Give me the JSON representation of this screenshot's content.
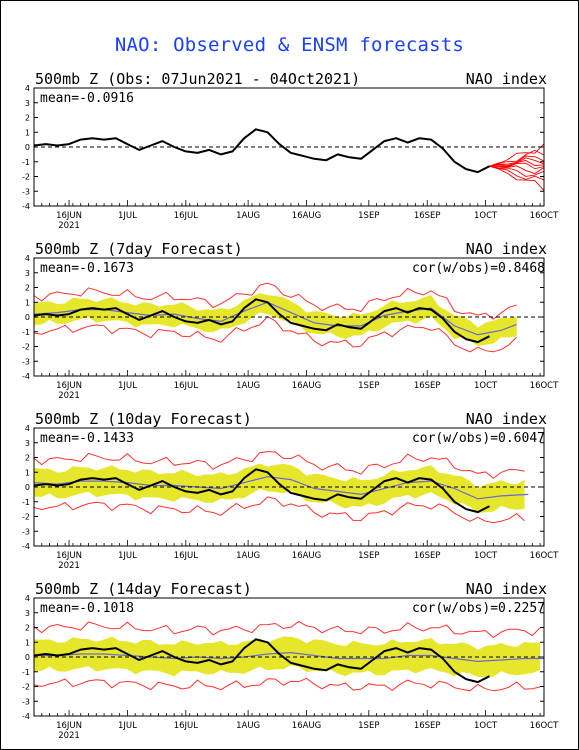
{
  "title": "NAO: Observed & ENSM forecasts",
  "colors": {
    "title": "#1a40ff",
    "observed": "#000000",
    "ensemble_members": "#ff0000",
    "ensemble_band": "#e6e62a",
    "ensemble_mean": "#6a6ad0",
    "spread_bounds": "#ff3030",
    "zero_line": "#000000"
  },
  "x_tick_labels": [
    "16JUN",
    "1JUL",
    "16JUL",
    "1AUG",
    "16AUG",
    "1SEP",
    "16SEP",
    "1OCT",
    "16OCT"
  ],
  "x_year_label": "2021",
  "y_tick_labels": [
    "4",
    "3",
    "2",
    "1",
    "0",
    "-1",
    "-2",
    "-3",
    "-4"
  ],
  "panels": [
    {
      "title_left": "500mb Z (Obs: 07Jun2021 - 04Oct2021)",
      "title_right": "NAO index",
      "stat_left": "mean=-0.0916",
      "stat_right": ""
    },
    {
      "title_left": "500mb Z (7day Forecast)",
      "title_right": "NAO index",
      "stat_left": "mean=-0.1673",
      "stat_right": "cor(w/obs)=0.8468"
    },
    {
      "title_left": "500mb Z (10day Forecast)",
      "title_right": "NAO index",
      "stat_left": "mean=-0.1433",
      "stat_right": "cor(w/obs)=0.6047"
    },
    {
      "title_left": "500mb Z (14day Forecast)",
      "title_right": "NAO index",
      "stat_left": "mean=-0.1018",
      "stat_right": "cor(w/obs)=0.2257"
    }
  ],
  "chart_data": [
    {
      "type": "line",
      "title": "500mb Z (Obs: 07Jun2021 - 04Oct2021)",
      "ylabel": "NAO index",
      "ylim": [
        -4,
        4
      ],
      "x_range_days": [
        0,
        131
      ],
      "x_ticks_days": [
        9,
        24,
        39,
        55,
        70,
        86,
        101,
        116,
        131
      ],
      "series": [
        {
          "name": "observed",
          "x": [
            0,
            3,
            6,
            9,
            12,
            15,
            18,
            21,
            24,
            27,
            30,
            33,
            36,
            39,
            42,
            45,
            48,
            51,
            54,
            57,
            60,
            63,
            66,
            69,
            72,
            75,
            78,
            81,
            84,
            87,
            90,
            93,
            96,
            99,
            102,
            105,
            108,
            111,
            114,
            117
          ],
          "y": [
            0.1,
            0.2,
            0.1,
            0.2,
            0.5,
            0.6,
            0.5,
            0.6,
            0.2,
            -0.2,
            0.1,
            0.4,
            0.0,
            -0.3,
            -0.4,
            -0.2,
            -0.5,
            -0.3,
            0.6,
            1.2,
            1.0,
            0.2,
            -0.4,
            -0.6,
            -0.8,
            -0.9,
            -0.5,
            -0.7,
            -0.8,
            -0.2,
            0.4,
            0.6,
            0.3,
            0.6,
            0.5,
            -0.1,
            -1.0,
            -1.5,
            -1.7,
            -1.3
          ]
        }
      ],
      "forecast_members_start_day": 117,
      "forecast_members_end_day": 131,
      "forecast_members_end_values": [
        -0.3,
        -0.8,
        -1.2,
        -1.6,
        -2.0,
        -2.4,
        -2.8,
        -0.6,
        -1.0,
        0.1
      ]
    },
    {
      "type": "line",
      "title": "500mb Z (7day Forecast)",
      "ylabel": "NAO index",
      "ylim": [
        -4,
        4
      ],
      "x_ticks_days": [
        9,
        24,
        39,
        55,
        70,
        86,
        101,
        116,
        131
      ],
      "series": [
        {
          "name": "observed",
          "x": [
            0,
            3,
            6,
            9,
            12,
            15,
            18,
            21,
            24,
            27,
            30,
            33,
            36,
            39,
            42,
            45,
            48,
            51,
            54,
            57,
            60,
            63,
            66,
            69,
            72,
            75,
            78,
            81,
            84,
            87,
            90,
            93,
            96,
            99,
            102,
            105,
            108,
            111,
            114,
            117
          ],
          "y": [
            0.1,
            0.2,
            0.1,
            0.2,
            0.5,
            0.6,
            0.5,
            0.6,
            0.2,
            -0.2,
            0.1,
            0.4,
            0.0,
            -0.3,
            -0.4,
            -0.2,
            -0.5,
            -0.3,
            0.6,
            1.2,
            1.0,
            0.2,
            -0.4,
            -0.6,
            -0.8,
            -0.9,
            -0.5,
            -0.7,
            -0.8,
            -0.2,
            0.4,
            0.6,
            0.3,
            0.6,
            0.5,
            -0.1,
            -1.0,
            -1.5,
            -1.7,
            -1.3
          ]
        },
        {
          "name": "ensemble_mean",
          "x": [
            0,
            6,
            12,
            18,
            24,
            30,
            36,
            42,
            48,
            54,
            60,
            66,
            72,
            78,
            84,
            90,
            96,
            102,
            108,
            114,
            120,
            124
          ],
          "y": [
            0.2,
            0.3,
            0.5,
            0.5,
            0.3,
            0.1,
            0.2,
            -0.1,
            -0.3,
            0.4,
            1.0,
            0.3,
            -0.4,
            -0.6,
            -0.6,
            0.1,
            0.4,
            0.6,
            -0.6,
            -1.2,
            -0.9,
            -0.5
          ]
        }
      ],
      "band_half_width": 0.7,
      "bounds_half_width": 1.2,
      "forecast_end_day": 124
    },
    {
      "type": "line",
      "title": "500mb Z (10day Forecast)",
      "ylabel": "NAO index",
      "ylim": [
        -4,
        4
      ],
      "x_ticks_days": [
        9,
        24,
        39,
        55,
        70,
        86,
        101,
        116,
        131
      ],
      "series": [
        {
          "name": "observed",
          "x": [
            0,
            3,
            6,
            9,
            12,
            15,
            18,
            21,
            24,
            27,
            30,
            33,
            36,
            39,
            42,
            45,
            48,
            51,
            54,
            57,
            60,
            63,
            66,
            69,
            72,
            75,
            78,
            81,
            84,
            87,
            90,
            93,
            96,
            99,
            102,
            105,
            108,
            111,
            114,
            117
          ],
          "y": [
            0.1,
            0.2,
            0.1,
            0.2,
            0.5,
            0.6,
            0.5,
            0.6,
            0.2,
            -0.2,
            0.1,
            0.4,
            0.0,
            -0.3,
            -0.4,
            -0.2,
            -0.5,
            -0.3,
            0.6,
            1.2,
            1.0,
            0.2,
            -0.4,
            -0.6,
            -0.8,
            -0.9,
            -0.5,
            -0.7,
            -0.8,
            -0.2,
            0.4,
            0.6,
            0.3,
            0.6,
            0.5,
            -0.1,
            -1.0,
            -1.5,
            -1.7,
            -1.3
          ]
        },
        {
          "name": "ensemble_mean",
          "x": [
            0,
            6,
            12,
            18,
            24,
            30,
            36,
            42,
            48,
            54,
            60,
            66,
            72,
            78,
            84,
            90,
            96,
            102,
            108,
            114,
            120,
            127
          ],
          "y": [
            0.3,
            0.2,
            0.4,
            0.4,
            0.3,
            0.1,
            0.1,
            0.0,
            -0.1,
            0.3,
            0.7,
            0.5,
            -0.1,
            -0.3,
            -0.5,
            -0.1,
            0.3,
            0.4,
            -0.1,
            -0.8,
            -0.6,
            -0.5
          ]
        }
      ],
      "band_half_width": 0.9,
      "bounds_half_width": 1.6,
      "forecast_end_day": 127
    },
    {
      "type": "line",
      "title": "500mb Z (14day Forecast)",
      "ylabel": "NAO index",
      "ylim": [
        -4,
        4
      ],
      "x_ticks_days": [
        9,
        24,
        39,
        55,
        70,
        86,
        101,
        116,
        131
      ],
      "series": [
        {
          "name": "observed",
          "x": [
            0,
            3,
            6,
            9,
            12,
            15,
            18,
            21,
            24,
            27,
            30,
            33,
            36,
            39,
            42,
            45,
            48,
            51,
            54,
            57,
            60,
            63,
            66,
            69,
            72,
            75,
            78,
            81,
            84,
            87,
            90,
            93,
            96,
            99,
            102,
            105,
            108,
            111,
            114,
            117
          ],
          "y": [
            0.1,
            0.2,
            0.1,
            0.2,
            0.5,
            0.6,
            0.5,
            0.6,
            0.2,
            -0.2,
            0.1,
            0.4,
            0.0,
            -0.3,
            -0.4,
            -0.2,
            -0.5,
            -0.3,
            0.6,
            1.2,
            1.0,
            0.2,
            -0.4,
            -0.6,
            -0.8,
            -0.9,
            -0.5,
            -0.7,
            -0.8,
            -0.2,
            0.4,
            0.6,
            0.3,
            0.6,
            0.5,
            -0.1,
            -1.0,
            -1.5,
            -1.7,
            -1.3
          ]
        },
        {
          "name": "ensemble_mean",
          "x": [
            0,
            6,
            12,
            18,
            24,
            30,
            36,
            42,
            48,
            54,
            60,
            66,
            72,
            78,
            84,
            90,
            96,
            102,
            108,
            114,
            120,
            126,
            131
          ],
          "y": [
            0.1,
            0.1,
            0.2,
            0.2,
            0.1,
            0.0,
            -0.1,
            0.0,
            -0.1,
            0.0,
            0.2,
            0.3,
            0.1,
            -0.1,
            -0.1,
            -0.1,
            0.1,
            0.1,
            -0.1,
            -0.3,
            -0.2,
            -0.1,
            -0.1
          ]
        }
      ],
      "band_half_width": 1.0,
      "bounds_half_width": 1.9,
      "forecast_end_day": 131
    }
  ]
}
